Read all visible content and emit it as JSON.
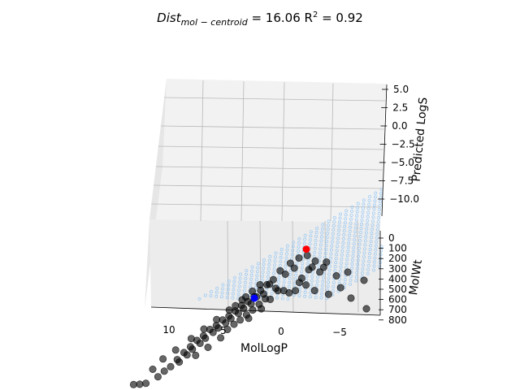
{
  "chart_data": {
    "type": "scatter",
    "projection": "3d",
    "title": {
      "main": "Dist",
      "sub": "mol − centroid",
      "rest": " = 16.06 R",
      "sup": "2",
      "end": " = 0.92"
    },
    "xlabel": "MolLogP",
    "ylabel": "MolWt",
    "zlabel": "Predicted LogS",
    "x_ticks": [
      "10",
      "5",
      "0",
      "−5"
    ],
    "y_ticks": [
      "0",
      "100",
      "200",
      "300",
      "400",
      "500",
      "600",
      "700",
      "800"
    ],
    "z_ticks": [
      "5.0",
      "2.5",
      "0.0",
      "−2.5",
      "−5.0",
      "−7.5",
      "−10.0"
    ],
    "xlim": [
      -8,
      12
    ],
    "ylim": [
      0,
      800
    ],
    "zlim": [
      -12,
      6
    ],
    "grid": true,
    "colors": {
      "points": "#000000",
      "plane": "#8ec4f5",
      "centroid": "#0000ff",
      "molecule": "#ff0000",
      "pane": "#f2f2f2"
    },
    "centroid": {
      "x": 2.0,
      "y": 300,
      "z": -3.0
    },
    "molecule": {
      "x": -2.0,
      "y": 10,
      "z": 1.0
    },
    "series": [
      {
        "values": [
          [
            -2.2,
            20,
            0.2
          ],
          [
            -1.5,
            30,
            0.0
          ],
          [
            -3.0,
            40,
            -0.5
          ],
          [
            -0.8,
            60,
            -0.4
          ],
          [
            -2.8,
            80,
            -1.0
          ],
          [
            -1.2,
            100,
            -0.8
          ],
          [
            0.0,
            90,
            -1.1
          ],
          [
            -0.5,
            120,
            -1.4
          ],
          [
            -3.5,
            150,
            -1.2
          ],
          [
            -2.0,
            160,
            -1.8
          ],
          [
            -4.0,
            60,
            -0.6
          ],
          [
            -5.0,
            200,
            -1.5
          ],
          [
            -6.0,
            150,
            -1.5
          ],
          [
            -7.5,
            250,
            -2.0
          ],
          [
            -5.5,
            300,
            -2.4
          ],
          [
            -4.5,
            350,
            -2.8
          ],
          [
            -6.5,
            420,
            -3.0
          ],
          [
            -8.0,
            500,
            -4.0
          ],
          [
            0.5,
            150,
            -1.8
          ],
          [
            1.0,
            180,
            -2.2
          ],
          [
            0.8,
            200,
            -2.0
          ],
          [
            1.5,
            220,
            -2.6
          ],
          [
            1.2,
            250,
            -2.9
          ],
          [
            2.0,
            260,
            -3.1
          ],
          [
            1.8,
            280,
            -3.0
          ],
          [
            2.5,
            300,
            -3.4
          ],
          [
            2.2,
            320,
            -3.6
          ],
          [
            3.0,
            310,
            -3.8
          ],
          [
            2.8,
            340,
            -4.0
          ],
          [
            3.5,
            350,
            -4.2
          ],
          [
            3.2,
            370,
            -4.4
          ],
          [
            4.0,
            380,
            -4.6
          ],
          [
            3.8,
            400,
            -4.8
          ],
          [
            4.5,
            390,
            -5.0
          ],
          [
            4.2,
            420,
            -5.2
          ],
          [
            5.0,
            430,
            -5.4
          ],
          [
            4.8,
            450,
            -5.6
          ],
          [
            5.5,
            440,
            -5.8
          ],
          [
            5.2,
            470,
            -6.0
          ],
          [
            6.0,
            480,
            -6.3
          ],
          [
            5.8,
            500,
            -6.5
          ],
          [
            6.5,
            490,
            -6.8
          ],
          [
            6.2,
            520,
            -7.0
          ],
          [
            7.0,
            530,
            -7.3
          ],
          [
            6.8,
            550,
            -7.5
          ],
          [
            7.5,
            560,
            -7.8
          ],
          [
            7.2,
            580,
            -8.0
          ],
          [
            8.0,
            600,
            -8.4
          ],
          [
            7.8,
            620,
            -8.6
          ],
          [
            8.5,
            640,
            -9.0
          ],
          [
            9.0,
            660,
            -9.4
          ],
          [
            9.5,
            700,
            -9.8
          ],
          [
            10.5,
            750,
            -10.2
          ],
          [
            11.0,
            720,
            -10.5
          ],
          [
            0.2,
            230,
            -2.4
          ],
          [
            1.0,
            300,
            -3.2
          ],
          [
            1.5,
            350,
            -3.5
          ],
          [
            2.0,
            380,
            -4.0
          ],
          [
            2.5,
            420,
            -4.3
          ],
          [
            3.0,
            450,
            -4.7
          ],
          [
            3.5,
            480,
            -5.0
          ],
          [
            4.0,
            500,
            -5.5
          ],
          [
            0.0,
            260,
            -2.5
          ],
          [
            -0.5,
            280,
            -2.4
          ],
          [
            -1.0,
            300,
            -2.6
          ],
          [
            -1.5,
            320,
            -2.2
          ],
          [
            2.2,
            200,
            -2.8
          ],
          [
            3.0,
            250,
            -3.5
          ],
          [
            4.0,
            300,
            -4.4
          ],
          [
            5.0,
            350,
            -5.2
          ],
          [
            6.0,
            400,
            -6.0
          ],
          [
            7.0,
            450,
            -6.8
          ],
          [
            4.5,
            550,
            -6.2
          ],
          [
            5.5,
            600,
            -7.0
          ],
          [
            6.5,
            650,
            -7.6
          ],
          [
            3.5,
            270,
            -4.1
          ],
          [
            2.7,
            230,
            -3.3
          ],
          [
            1.6,
            160,
            -2.3
          ],
          [
            -2.5,
            120,
            -1.0
          ],
          [
            -3.8,
            110,
            -0.9
          ],
          [
            -1.8,
            220,
            -1.9
          ],
          [
            -2.4,
            260,
            -2.0
          ],
          [
            -3.2,
            330,
            -2.3
          ],
          [
            8.2,
            480,
            -8.0
          ],
          [
            9.2,
            520,
            -8.8
          ],
          [
            10.0,
            600,
            -9.5
          ],
          [
            11.5,
            680,
            -10.8
          ],
          [
            0.6,
            340,
            -3.0
          ],
          [
            1.3,
            420,
            -3.6
          ],
          [
            2.3,
            470,
            -4.4
          ]
        ]
      }
    ]
  }
}
